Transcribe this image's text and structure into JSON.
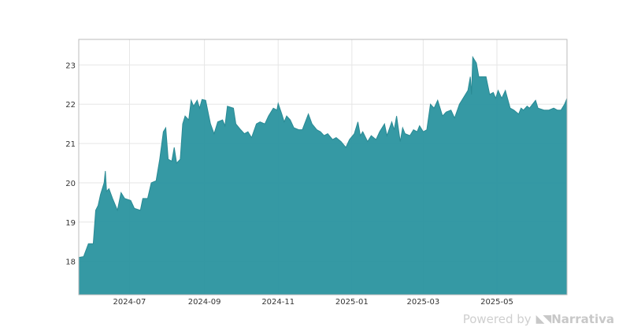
{
  "chart_data": {
    "type": "area",
    "title": "",
    "xlabel": "",
    "ylabel": "",
    "xlim": [
      "2024-05-20",
      "2025-06-28"
    ],
    "ylim": [
      17.15,
      23.65
    ],
    "x_ticks": [
      "2024-07",
      "2024-09",
      "2024-11",
      "2025-01",
      "2025-03",
      "2025-05"
    ],
    "y_ticks": [
      18,
      19,
      20,
      21,
      22,
      23
    ],
    "grid": true,
    "legend": "none",
    "fill_color": "#2a949f",
    "series": [
      {
        "values": [
          [
            "2024-05-20",
            18.1
          ],
          [
            "2024-05-24",
            18.12
          ],
          [
            "2024-05-28",
            18.45
          ],
          [
            "2024-06-01",
            18.45
          ],
          [
            "2024-06-03",
            19.3
          ],
          [
            "2024-06-05",
            19.42
          ],
          [
            "2024-06-07",
            19.7
          ],
          [
            "2024-06-10",
            20.0
          ],
          [
            "2024-06-11",
            20.3
          ],
          [
            "2024-06-12",
            19.78
          ],
          [
            "2024-06-14",
            19.85
          ],
          [
            "2024-06-17",
            19.6
          ],
          [
            "2024-06-21",
            19.3
          ],
          [
            "2024-06-24",
            19.75
          ],
          [
            "2024-06-27",
            19.6
          ],
          [
            "2024-07-02",
            19.55
          ],
          [
            "2024-07-05",
            19.35
          ],
          [
            "2024-07-10",
            19.3
          ],
          [
            "2024-07-12",
            19.6
          ],
          [
            "2024-07-16",
            19.6
          ],
          [
            "2024-07-19",
            20.0
          ],
          [
            "2024-07-23",
            20.05
          ],
          [
            "2024-07-26",
            20.6
          ],
          [
            "2024-07-29",
            21.3
          ],
          [
            "2024-07-31",
            21.4
          ],
          [
            "2024-08-02",
            20.6
          ],
          [
            "2024-08-05",
            20.55
          ],
          [
            "2024-08-07",
            20.9
          ],
          [
            "2024-08-09",
            20.5
          ],
          [
            "2024-08-12",
            20.6
          ],
          [
            "2024-08-14",
            21.5
          ],
          [
            "2024-08-16",
            21.7
          ],
          [
            "2024-08-19",
            21.6
          ],
          [
            "2024-08-21",
            22.1
          ],
          [
            "2024-08-23",
            21.95
          ],
          [
            "2024-08-26",
            22.1
          ],
          [
            "2024-08-28",
            21.9
          ],
          [
            "2024-08-30",
            22.12
          ],
          [
            "2024-09-02",
            22.1
          ],
          [
            "2024-09-04",
            21.8
          ],
          [
            "2024-09-06",
            21.5
          ],
          [
            "2024-09-09",
            21.25
          ],
          [
            "2024-09-12",
            21.55
          ],
          [
            "2024-09-16",
            21.6
          ],
          [
            "2024-09-18",
            21.45
          ],
          [
            "2024-09-20",
            21.95
          ],
          [
            "2024-09-25",
            21.9
          ],
          [
            "2024-09-27",
            21.5
          ],
          [
            "2024-10-01",
            21.35
          ],
          [
            "2024-10-04",
            21.25
          ],
          [
            "2024-10-07",
            21.3
          ],
          [
            "2024-10-10",
            21.15
          ],
          [
            "2024-10-14",
            21.5
          ],
          [
            "2024-10-17",
            21.55
          ],
          [
            "2024-10-21",
            21.5
          ],
          [
            "2024-10-24",
            21.7
          ],
          [
            "2024-10-28",
            21.9
          ],
          [
            "2024-10-31",
            21.85
          ],
          [
            "2024-11-01",
            22.02
          ],
          [
            "2024-11-04",
            21.75
          ],
          [
            "2024-11-06",
            21.55
          ],
          [
            "2024-11-08",
            21.7
          ],
          [
            "2024-11-11",
            21.6
          ],
          [
            "2024-11-14",
            21.4
          ],
          [
            "2024-11-18",
            21.35
          ],
          [
            "2024-11-21",
            21.35
          ],
          [
            "2024-11-26",
            21.75
          ],
          [
            "2024-11-29",
            21.5
          ],
          [
            "2024-12-03",
            21.35
          ],
          [
            "2024-12-06",
            21.3
          ],
          [
            "2024-12-09",
            21.2
          ],
          [
            "2024-12-12",
            21.25
          ],
          [
            "2024-12-16",
            21.1
          ],
          [
            "2024-12-19",
            21.15
          ],
          [
            "2024-12-23",
            21.05
          ],
          [
            "2024-12-27",
            20.9
          ],
          [
            "2024-12-30",
            21.1
          ],
          [
            "2025-01-03",
            21.25
          ],
          [
            "2025-01-06",
            21.55
          ],
          [
            "2025-01-08",
            21.2
          ],
          [
            "2025-01-10",
            21.3
          ],
          [
            "2025-01-14",
            21.05
          ],
          [
            "2025-01-17",
            21.2
          ],
          [
            "2025-01-21",
            21.1
          ],
          [
            "2025-01-24",
            21.3
          ],
          [
            "2025-01-28",
            21.5
          ],
          [
            "2025-01-30",
            21.2
          ],
          [
            "2025-02-03",
            21.55
          ],
          [
            "2025-02-05",
            21.35
          ],
          [
            "2025-02-07",
            21.7
          ],
          [
            "2025-02-10",
            21.05
          ],
          [
            "2025-02-12",
            21.4
          ],
          [
            "2025-02-14",
            21.25
          ],
          [
            "2025-02-18",
            21.2
          ],
          [
            "2025-02-21",
            21.35
          ],
          [
            "2025-02-24",
            21.3
          ],
          [
            "2025-02-26",
            21.45
          ],
          [
            "2025-03-01",
            21.3
          ],
          [
            "2025-03-04",
            21.35
          ],
          [
            "2025-03-07",
            22.0
          ],
          [
            "2025-03-10",
            21.9
          ],
          [
            "2025-03-13",
            22.1
          ],
          [
            "2025-03-17",
            21.7
          ],
          [
            "2025-03-20",
            21.8
          ],
          [
            "2025-03-24",
            21.85
          ],
          [
            "2025-03-27",
            21.65
          ],
          [
            "2025-03-31",
            22.0
          ],
          [
            "2025-04-03",
            22.15
          ],
          [
            "2025-04-07",
            22.35
          ],
          [
            "2025-04-09",
            22.7
          ],
          [
            "2025-04-10",
            22.25
          ],
          [
            "2025-04-11",
            23.2
          ],
          [
            "2025-04-14",
            23.05
          ],
          [
            "2025-04-16",
            22.7
          ],
          [
            "2025-04-22",
            22.7
          ],
          [
            "2025-04-25",
            22.25
          ],
          [
            "2025-04-28",
            22.3
          ],
          [
            "2025-04-30",
            22.15
          ],
          [
            "2025-05-02",
            22.35
          ],
          [
            "2025-05-05",
            22.15
          ],
          [
            "2025-05-08",
            22.35
          ],
          [
            "2025-05-12",
            21.9
          ],
          [
            "2025-05-15",
            21.85
          ],
          [
            "2025-05-19",
            21.75
          ],
          [
            "2025-05-21",
            21.9
          ],
          [
            "2025-05-23",
            21.85
          ],
          [
            "2025-05-26",
            21.95
          ],
          [
            "2025-05-28",
            21.9
          ],
          [
            "2025-06-02",
            22.1
          ],
          [
            "2025-06-04",
            21.9
          ],
          [
            "2025-06-09",
            21.85
          ],
          [
            "2025-06-13",
            21.85
          ],
          [
            "2025-06-17",
            21.9
          ],
          [
            "2025-06-20",
            21.85
          ],
          [
            "2025-06-23",
            21.85
          ],
          [
            "2025-06-26",
            22.0
          ],
          [
            "2025-06-28",
            22.15
          ]
        ]
      }
    ]
  },
  "watermark": {
    "prefix": "Powered by",
    "logo_glyph": "◣◥",
    "brand": "Narrativa"
  }
}
